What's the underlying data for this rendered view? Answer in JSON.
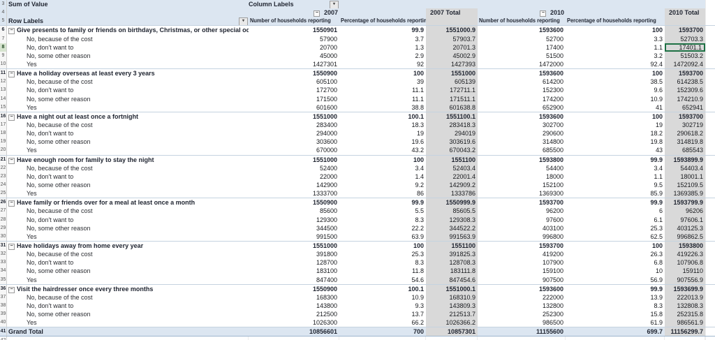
{
  "icons": {
    "dropdown": "▾",
    "collapse": "−"
  },
  "colors": {
    "header_fill": "#dce6f1",
    "total_fill": "#d9d9d9",
    "separator": "#c5d3e0",
    "grand_bottom": "#9eb6ce",
    "selection_border": "#1e7145",
    "gutter_sel": "#d6e4cf"
  },
  "table": {
    "corner_label": "Sum of Value",
    "column_labels_caption": "Column Labels",
    "row_labels_caption": "Row Labels",
    "start_row_number": 3,
    "col_groups": [
      {
        "year": "2007",
        "total_label": "2007 Total"
      },
      {
        "year": "2010",
        "total_label": "2010 Total"
      }
    ],
    "measure_headers": [
      "Number of households reporting",
      "Percentage of households reporting"
    ],
    "selection": {
      "row_number": 8,
      "section": 0,
      "child": 1,
      "value_index": 5,
      "value": "17401.1"
    },
    "sections": [
      {
        "label": "Give presents to family or friends on birthdays, Christmas, or other special occasions",
        "totals": [
          "1550901",
          "99.9",
          "1551000.9",
          "1593600",
          "100",
          "1593700"
        ],
        "children": [
          {
            "label": "No, because of the cost",
            "values": [
              "57900",
              "3.7",
              "57903.7",
              "52700",
              "3.3",
              "52703.3"
            ]
          },
          {
            "label": "No, don't want to",
            "values": [
              "20700",
              "1.3",
              "20701.3",
              "17400",
              "1.1",
              "17401.1"
            ]
          },
          {
            "label": "No, some other reason",
            "values": [
              "45000",
              "2.9",
              "45002.9",
              "51500",
              "3.2",
              "51503.2"
            ]
          },
          {
            "label": "Yes",
            "values": [
              "1427301",
              "92",
              "1427393",
              "1472000",
              "92.4",
              "1472092.4"
            ]
          }
        ]
      },
      {
        "label": "Have a holiday overseas at least every 3 years",
        "totals": [
          "1550900",
          "100",
          "1551000",
          "1593600",
          "100",
          "1593700"
        ],
        "children": [
          {
            "label": "No, because of the cost",
            "values": [
              "605100",
              "39",
              "605139",
              "614200",
              "38.5",
              "614238.5"
            ]
          },
          {
            "label": "No, don't want to",
            "values": [
              "172700",
              "11.1",
              "172711.1",
              "152300",
              "9.6",
              "152309.6"
            ]
          },
          {
            "label": "No, some other reason",
            "values": [
              "171500",
              "11.1",
              "171511.1",
              "174200",
              "10.9",
              "174210.9"
            ]
          },
          {
            "label": "Yes",
            "values": [
              "601600",
              "38.8",
              "601638.8",
              "652900",
              "41",
              "652941"
            ]
          }
        ]
      },
      {
        "label": "Have a night out at least once a fortnight",
        "totals": [
          "1551000",
          "100.1",
          "1551100.1",
          "1593600",
          "100",
          "1593700"
        ],
        "children": [
          {
            "label": "No, because of the cost",
            "values": [
              "283400",
              "18.3",
              "283418.3",
              "302700",
              "19",
              "302719"
            ]
          },
          {
            "label": "No, don't want to",
            "values": [
              "294000",
              "19",
              "294019",
              "290600",
              "18.2",
              "290618.2"
            ]
          },
          {
            "label": "No, some other reason",
            "values": [
              "303600",
              "19.6",
              "303619.6",
              "314800",
              "19.8",
              "314819.8"
            ]
          },
          {
            "label": "Yes",
            "values": [
              "670000",
              "43.2",
              "670043.2",
              "685500",
              "43",
              "685543"
            ]
          }
        ]
      },
      {
        "label": "Have enough room for family to stay the night",
        "totals": [
          "1551000",
          "100",
          "1551100",
          "1593800",
          "99.9",
          "1593899.9"
        ],
        "children": [
          {
            "label": "No, because of the cost",
            "values": [
              "52400",
              "3.4",
              "52403.4",
              "54400",
              "3.4",
              "54403.4"
            ]
          },
          {
            "label": "No, don't want to",
            "values": [
              "22000",
              "1.4",
              "22001.4",
              "18000",
              "1.1",
              "18001.1"
            ]
          },
          {
            "label": "No, some other reason",
            "values": [
              "142900",
              "9.2",
              "142909.2",
              "152100",
              "9.5",
              "152109.5"
            ]
          },
          {
            "label": "Yes",
            "values": [
              "1333700",
              "86",
              "1333786",
              "1369300",
              "85.9",
              "1369385.9"
            ]
          }
        ]
      },
      {
        "label": "Have family or friends over for a meal at least once a month",
        "totals": [
          "1550900",
          "99.9",
          "1550999.9",
          "1593700",
          "99.9",
          "1593799.9"
        ],
        "children": [
          {
            "label": "No, because of the cost",
            "values": [
              "85600",
              "5.5",
              "85605.5",
              "96200",
              "6",
              "96206"
            ]
          },
          {
            "label": "No, don't want to",
            "values": [
              "129300",
              "8.3",
              "129308.3",
              "97600",
              "6.1",
              "97606.1"
            ]
          },
          {
            "label": "No, some other reason",
            "values": [
              "344500",
              "22.2",
              "344522.2",
              "403100",
              "25.3",
              "403125.3"
            ]
          },
          {
            "label": "Yes",
            "values": [
              "991500",
              "63.9",
              "991563.9",
              "996800",
              "62.5",
              "996862.5"
            ]
          }
        ]
      },
      {
        "label": "Have holidays away from home every year",
        "totals": [
          "1551000",
          "100",
          "1551100",
          "1593700",
          "100",
          "1593800"
        ],
        "children": [
          {
            "label": "No, because of the cost",
            "values": [
              "391800",
              "25.3",
              "391825.3",
              "419200",
              "26.3",
              "419226.3"
            ]
          },
          {
            "label": "No, don't want to",
            "values": [
              "128700",
              "8.3",
              "128708.3",
              "107900",
              "6.8",
              "107906.8"
            ]
          },
          {
            "label": "No, some other reason",
            "values": [
              "183100",
              "11.8",
              "183111.8",
              "159100",
              "10",
              "159110"
            ]
          },
          {
            "label": "Yes",
            "values": [
              "847400",
              "54.6",
              "847454.6",
              "907500",
              "56.9",
              "907556.9"
            ]
          }
        ]
      },
      {
        "label": "Visit the hairdresser once every three months",
        "totals": [
          "1550900",
          "100.1",
          "1551000.1",
          "1593600",
          "99.9",
          "1593699.9"
        ],
        "children": [
          {
            "label": "No, because of the cost",
            "values": [
              "168300",
              "10.9",
              "168310.9",
              "222000",
              "13.9",
              "222013.9"
            ]
          },
          {
            "label": "No, don't want to",
            "values": [
              "143800",
              "9.3",
              "143809.3",
              "132800",
              "8.3",
              "132808.3"
            ]
          },
          {
            "label": "No, some other reason",
            "values": [
              "212500",
              "13.7",
              "212513.7",
              "252300",
              "15.8",
              "252315.8"
            ]
          },
          {
            "label": "Yes",
            "values": [
              "1026300",
              "66.2",
              "1026366.2",
              "986500",
              "61.9",
              "986561.9"
            ]
          }
        ]
      }
    ],
    "grand_total": {
      "label": "Grand Total",
      "values": [
        "10856601",
        "700",
        "10857301",
        "11155600",
        "699.7",
        "11156299.7"
      ]
    }
  }
}
